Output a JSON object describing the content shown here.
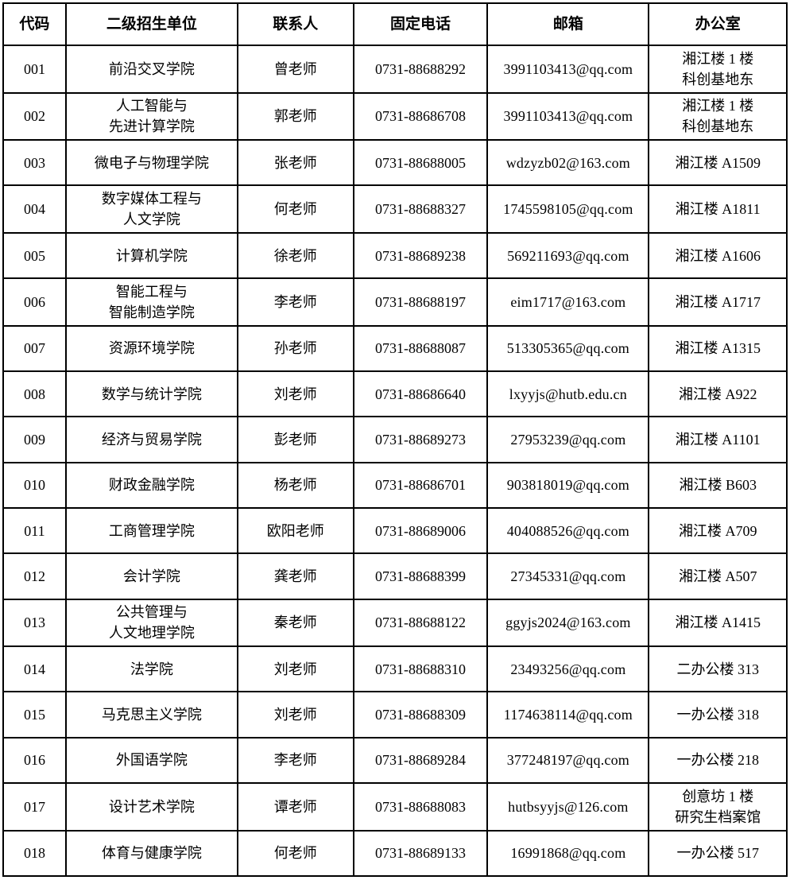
{
  "table": {
    "headers": [
      "代码",
      "二级招生单位",
      "联系人",
      "固定电话",
      "邮箱",
      "办公室"
    ],
    "rows": [
      {
        "code": "001",
        "unit": "前沿交叉学院",
        "contact": "曾老师",
        "phone": "0731-88688292",
        "email": "3991103413@qq.com",
        "office": "湘江楼 1 楼\n科创基地东"
      },
      {
        "code": "002",
        "unit": "人工智能与\n先进计算学院",
        "contact": "郭老师",
        "phone": "0731-88686708",
        "email": "3991103413@qq.com",
        "office": "湘江楼 1 楼\n科创基地东"
      },
      {
        "code": "003",
        "unit": "微电子与物理学院",
        "contact": "张老师",
        "phone": "0731-88688005",
        "email": "wdzyzb02@163.com",
        "office": "湘江楼 A1509"
      },
      {
        "code": "004",
        "unit": "数字媒体工程与\n人文学院",
        "contact": "何老师",
        "phone": "0731-88688327",
        "email": "1745598105@qq.com",
        "office": "湘江楼 A1811"
      },
      {
        "code": "005",
        "unit": "计算机学院",
        "contact": "徐老师",
        "phone": "0731-88689238",
        "email": "569211693@qq.com",
        "office": "湘江楼 A1606"
      },
      {
        "code": "006",
        "unit": "智能工程与\n智能制造学院",
        "contact": "李老师",
        "phone": "0731-88688197",
        "email": "eim1717@163.com",
        "office": "湘江楼 A1717"
      },
      {
        "code": "007",
        "unit": "资源环境学院",
        "contact": "孙老师",
        "phone": "0731-88688087",
        "email": "513305365@qq.com",
        "office": "湘江楼 A1315"
      },
      {
        "code": "008",
        "unit": "数学与统计学院",
        "contact": "刘老师",
        "phone": "0731-88686640",
        "email": "lxyyjs@hutb.edu.cn",
        "office": "湘江楼 A922"
      },
      {
        "code": "009",
        "unit": "经济与贸易学院",
        "contact": "彭老师",
        "phone": "0731-88689273",
        "email": "27953239@qq.com",
        "office": "湘江楼 A1101"
      },
      {
        "code": "010",
        "unit": "财政金融学院",
        "contact": "杨老师",
        "phone": "0731-88686701",
        "email": "903818019@qq.com",
        "office": "湘江楼 B603"
      },
      {
        "code": "011",
        "unit": "工商管理学院",
        "contact": "欧阳老师",
        "phone": "0731-88689006",
        "email": "404088526@qq.com",
        "office": "湘江楼 A709"
      },
      {
        "code": "012",
        "unit": "会计学院",
        "contact": "龚老师",
        "phone": "0731-88688399",
        "email": "27345331@qq.com",
        "office": "湘江楼 A507"
      },
      {
        "code": "013",
        "unit": "公共管理与\n人文地理学院",
        "contact": "秦老师",
        "phone": "0731-88688122",
        "email": "ggyjs2024@163.com",
        "office": "湘江楼 A1415"
      },
      {
        "code": "014",
        "unit": "法学院",
        "contact": "刘老师",
        "phone": "0731-88688310",
        "email": "23493256@qq.com",
        "office": "二办公楼 313"
      },
      {
        "code": "015",
        "unit": "马克思主义学院",
        "contact": "刘老师",
        "phone": "0731-88688309",
        "email": "1174638114@qq.com",
        "office": "一办公楼 318"
      },
      {
        "code": "016",
        "unit": "外国语学院",
        "contact": "李老师",
        "phone": "0731-88689284",
        "email": "377248197@qq.com",
        "office": "一办公楼 218"
      },
      {
        "code": "017",
        "unit": "设计艺术学院",
        "contact": "谭老师",
        "phone": "0731-88688083",
        "email": "hutbsyyjs@126.com",
        "office": "创意坊 1 楼\n研究生档案馆"
      },
      {
        "code": "018",
        "unit": "体育与健康学院",
        "contact": "何老师",
        "phone": "0731-88689133",
        "email": "16991868@qq.com",
        "office": "一办公楼 517"
      }
    ]
  }
}
